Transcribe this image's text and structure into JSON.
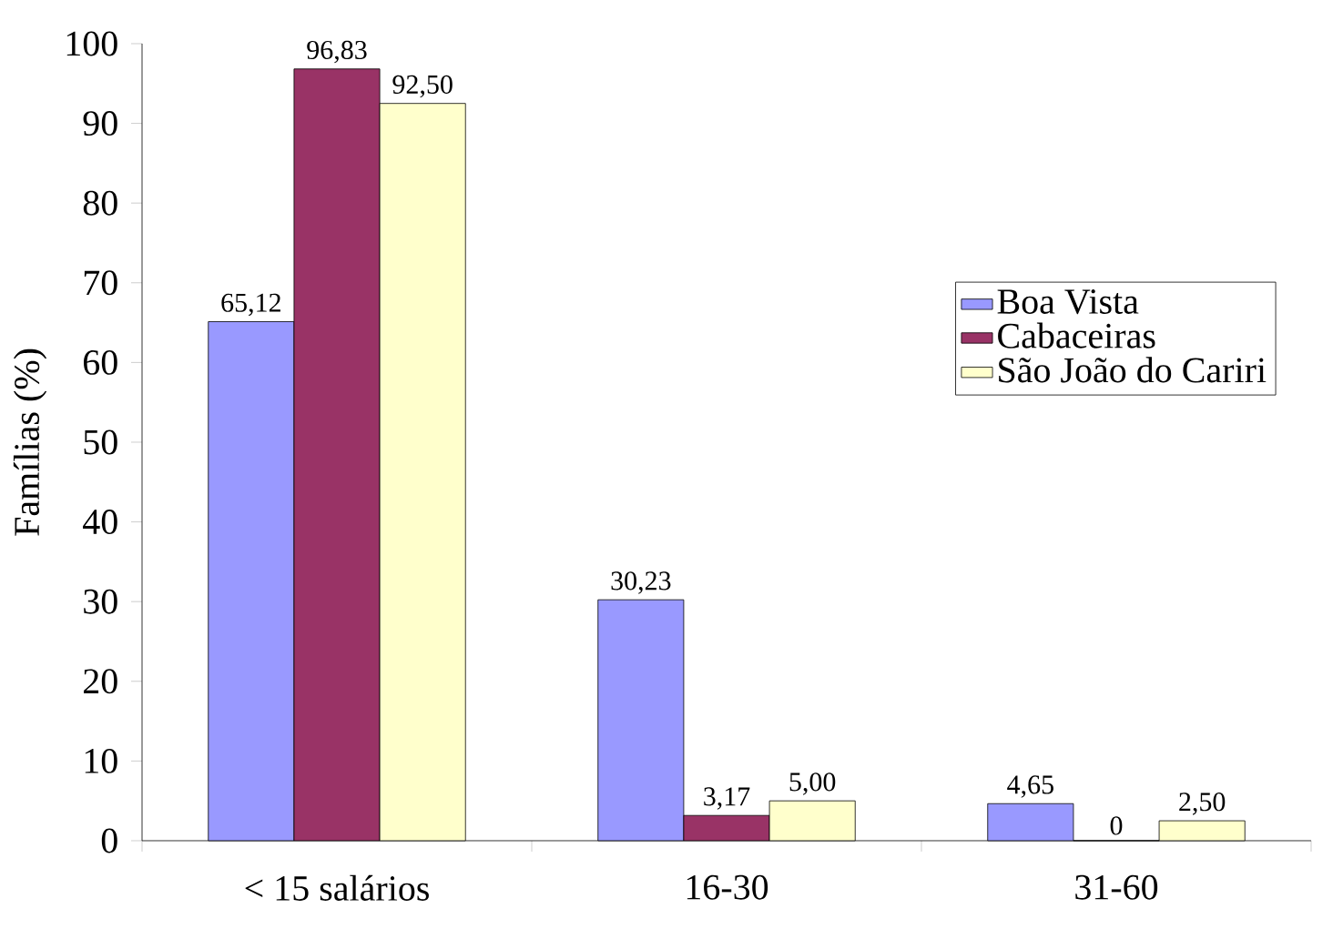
{
  "chart_data": {
    "type": "bar",
    "ylabel": "Famílias (%)",
    "categories": [
      "< 15 salários",
      "16-30",
      "31-60"
    ],
    "series": [
      {
        "name": "Boa Vista",
        "color": "#9999ff",
        "values": [
          65.12,
          30.23,
          4.65
        ],
        "value_labels": [
          "65,12",
          "30,23",
          "4,65"
        ]
      },
      {
        "name": "Cabaceiras",
        "color": "#993366",
        "values": [
          96.83,
          3.17,
          0
        ],
        "value_labels": [
          "96,83",
          "3,17",
          "0"
        ]
      },
      {
        "name": "São João do Cariri",
        "color": "#ffffcc",
        "values": [
          92.5,
          5.0,
          2.5
        ],
        "value_labels": [
          "92,50",
          "5,00",
          "2,50"
        ]
      }
    ],
    "ylim": [
      0,
      100
    ],
    "yticks": [
      0,
      10,
      20,
      30,
      40,
      50,
      60,
      70,
      80,
      90,
      100
    ],
    "legend": "right",
    "grid": false
  }
}
